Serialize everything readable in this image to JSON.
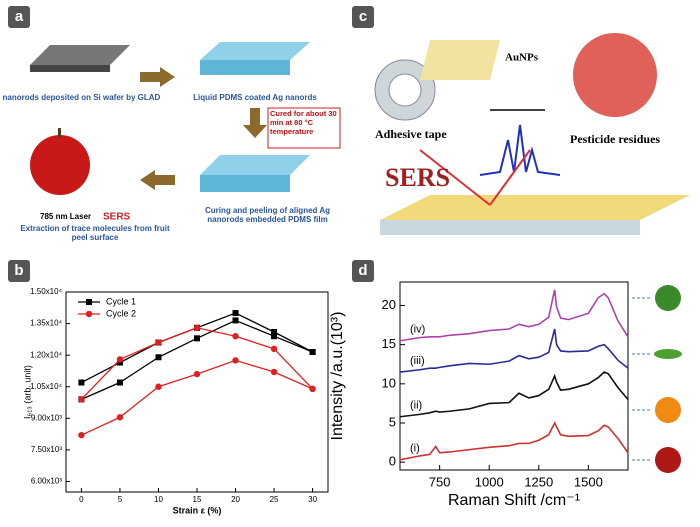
{
  "panel_labels": [
    "a",
    "b",
    "c",
    "d"
  ],
  "schematic_a": {
    "step1": "Ag nanorods deposited on Si wafer by GLAD",
    "step2": "Liquid PDMS coated Ag nanords",
    "curing": "Cured for about 30 min at 80 °C temperature",
    "step3": "Curing and peeling of aligned Ag nanorods embedded PDMS film",
    "step4": "Extraction of trace molecules from fruit peel surface",
    "laser": "785 nm  Laser",
    "sers": "SERS"
  },
  "schematic_c": {
    "aunps": "AuNPs",
    "tape": "Adhesive tape",
    "pesticide": "Pesticide residues",
    "sers": "SERS"
  },
  "chart_data": [
    {
      "type": "line",
      "xlabel": "Strain ε (%)",
      "ylabel": "I₆₁₃ (arb. unit)",
      "x": [
        0,
        5,
        10,
        15,
        20,
        25,
        30
      ],
      "xlim": [
        -2,
        32
      ],
      "xticks": [
        0,
        5,
        10,
        15,
        20,
        25,
        30
      ],
      "ylim": [
        5500,
        15000
      ],
      "yticks": [
        {
          "value": 6000,
          "label": "6.00x10³"
        },
        {
          "value": 7500,
          "label": "7.50x10³"
        },
        {
          "value": 9000,
          "label": "9.00x10³"
        },
        {
          "value": 10500,
          "label": "1.05x10⁴"
        },
        {
          "value": 12000,
          "label": "1.20x10⁴"
        },
        {
          "value": 13500,
          "label": "1.35x10⁴"
        },
        {
          "value": 15000,
          "label": "1.50x10⁴"
        }
      ],
      "legend": "upper left",
      "series": [
        {
          "name": "Cycle 1",
          "color": "#000000",
          "marker": "square",
          "values": [
            10700,
            11650,
            12600,
            13300,
            14000,
            13100,
            12150
          ],
          "values_lower": [
            9900,
            10700,
            11900,
            12800,
            13650,
            12900,
            12150
          ]
        },
        {
          "name": "Cycle 2",
          "color": "#e02020",
          "marker": "circle",
          "values": [
            9900,
            11800,
            12600,
            13300,
            12900,
            12300,
            10400
          ],
          "values_lower": [
            8200,
            9050,
            10500,
            11100,
            11750,
            11200,
            10400
          ]
        }
      ]
    },
    {
      "type": "line",
      "xlabel": "Raman Shift /cm⁻¹",
      "ylabel": "Intensity /a.u.(10³)",
      "x": [
        550,
        650,
        700,
        730,
        750,
        800,
        900,
        1000,
        1100,
        1150,
        1200,
        1250,
        1300,
        1330,
        1340,
        1360,
        1400,
        1500,
        1550,
        1580,
        1600,
        1650,
        1700
      ],
      "xlim": [
        550,
        1700
      ],
      "xticks": [
        750,
        1000,
        1250,
        1500
      ],
      "ylim": [
        -1,
        23
      ],
      "yticks": [
        0,
        5,
        10,
        15,
        20
      ],
      "legend": "inline",
      "series": [
        {
          "name": "(i)",
          "color": "#d03030",
          "values": [
            0.3,
            0.8,
            1.0,
            2.0,
            1.2,
            1.3,
            1.6,
            1.9,
            2.1,
            2.4,
            2.4,
            2.8,
            3.5,
            5.0,
            4.5,
            3.5,
            3.3,
            3.4,
            4.0,
            4.7,
            4.5,
            3.0,
            1.2
          ]
        },
        {
          "name": "(ii)",
          "color": "#111111",
          "values": [
            5.8,
            6.1,
            6.3,
            6.5,
            6.4,
            6.5,
            6.8,
            7.5,
            7.6,
            8.8,
            8.2,
            8.5,
            9.3,
            11.0,
            10.2,
            9.2,
            9.3,
            10.0,
            10.8,
            11.5,
            11.3,
            9.5,
            8.0
          ]
        },
        {
          "name": "(iii)",
          "color": "#2a2a9a",
          "values": [
            11.5,
            11.8,
            12.0,
            12.0,
            12.1,
            12.3,
            12.6,
            12.5,
            12.9,
            13.6,
            13.2,
            13.4,
            14.0,
            17.0,
            15.0,
            14.2,
            14.1,
            14.2,
            14.8,
            15.0,
            14.5,
            13.0,
            12.0
          ]
        },
        {
          "name": "(iv)",
          "color": "#b040b0",
          "values": [
            15.5,
            15.9,
            16.0,
            16.0,
            16.0,
            16.2,
            16.4,
            16.8,
            17.0,
            17.6,
            17.3,
            17.6,
            18.5,
            22.0,
            19.8,
            18.4,
            18.2,
            19.0,
            21.0,
            21.5,
            21.0,
            18.0,
            16.0
          ]
        }
      ]
    }
  ]
}
